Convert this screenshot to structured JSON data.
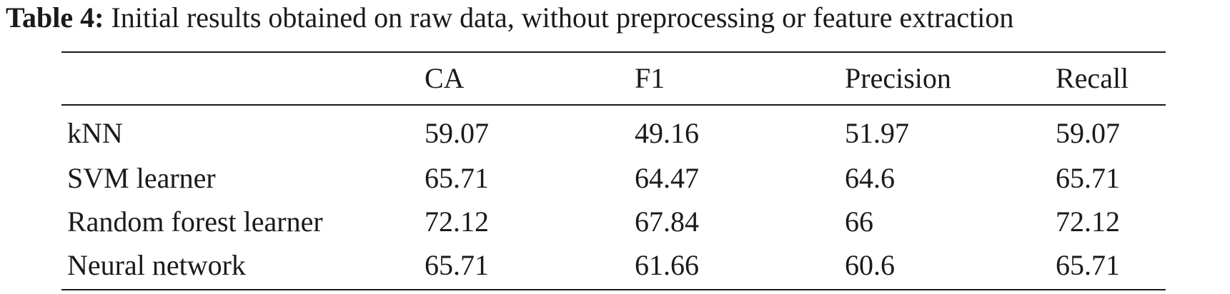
{
  "caption": {
    "label": "Table 4:",
    "text": "Initial results obtained on raw data, without preprocessing or feature extraction"
  },
  "table": {
    "columns": [
      "",
      "CA",
      "F1",
      "Precision",
      "Recall"
    ],
    "rows": [
      [
        "kNN",
        "59.07",
        "49.16",
        "51.97",
        "59.07"
      ],
      [
        "SVM learner",
        "65.71",
        "64.47",
        "64.6",
        "65.71"
      ],
      [
        "Random forest learner",
        "72.12",
        "67.84",
        "66",
        "72.12"
      ],
      [
        "Neural network",
        "65.71",
        "61.66",
        "60.6",
        "65.71"
      ]
    ]
  }
}
